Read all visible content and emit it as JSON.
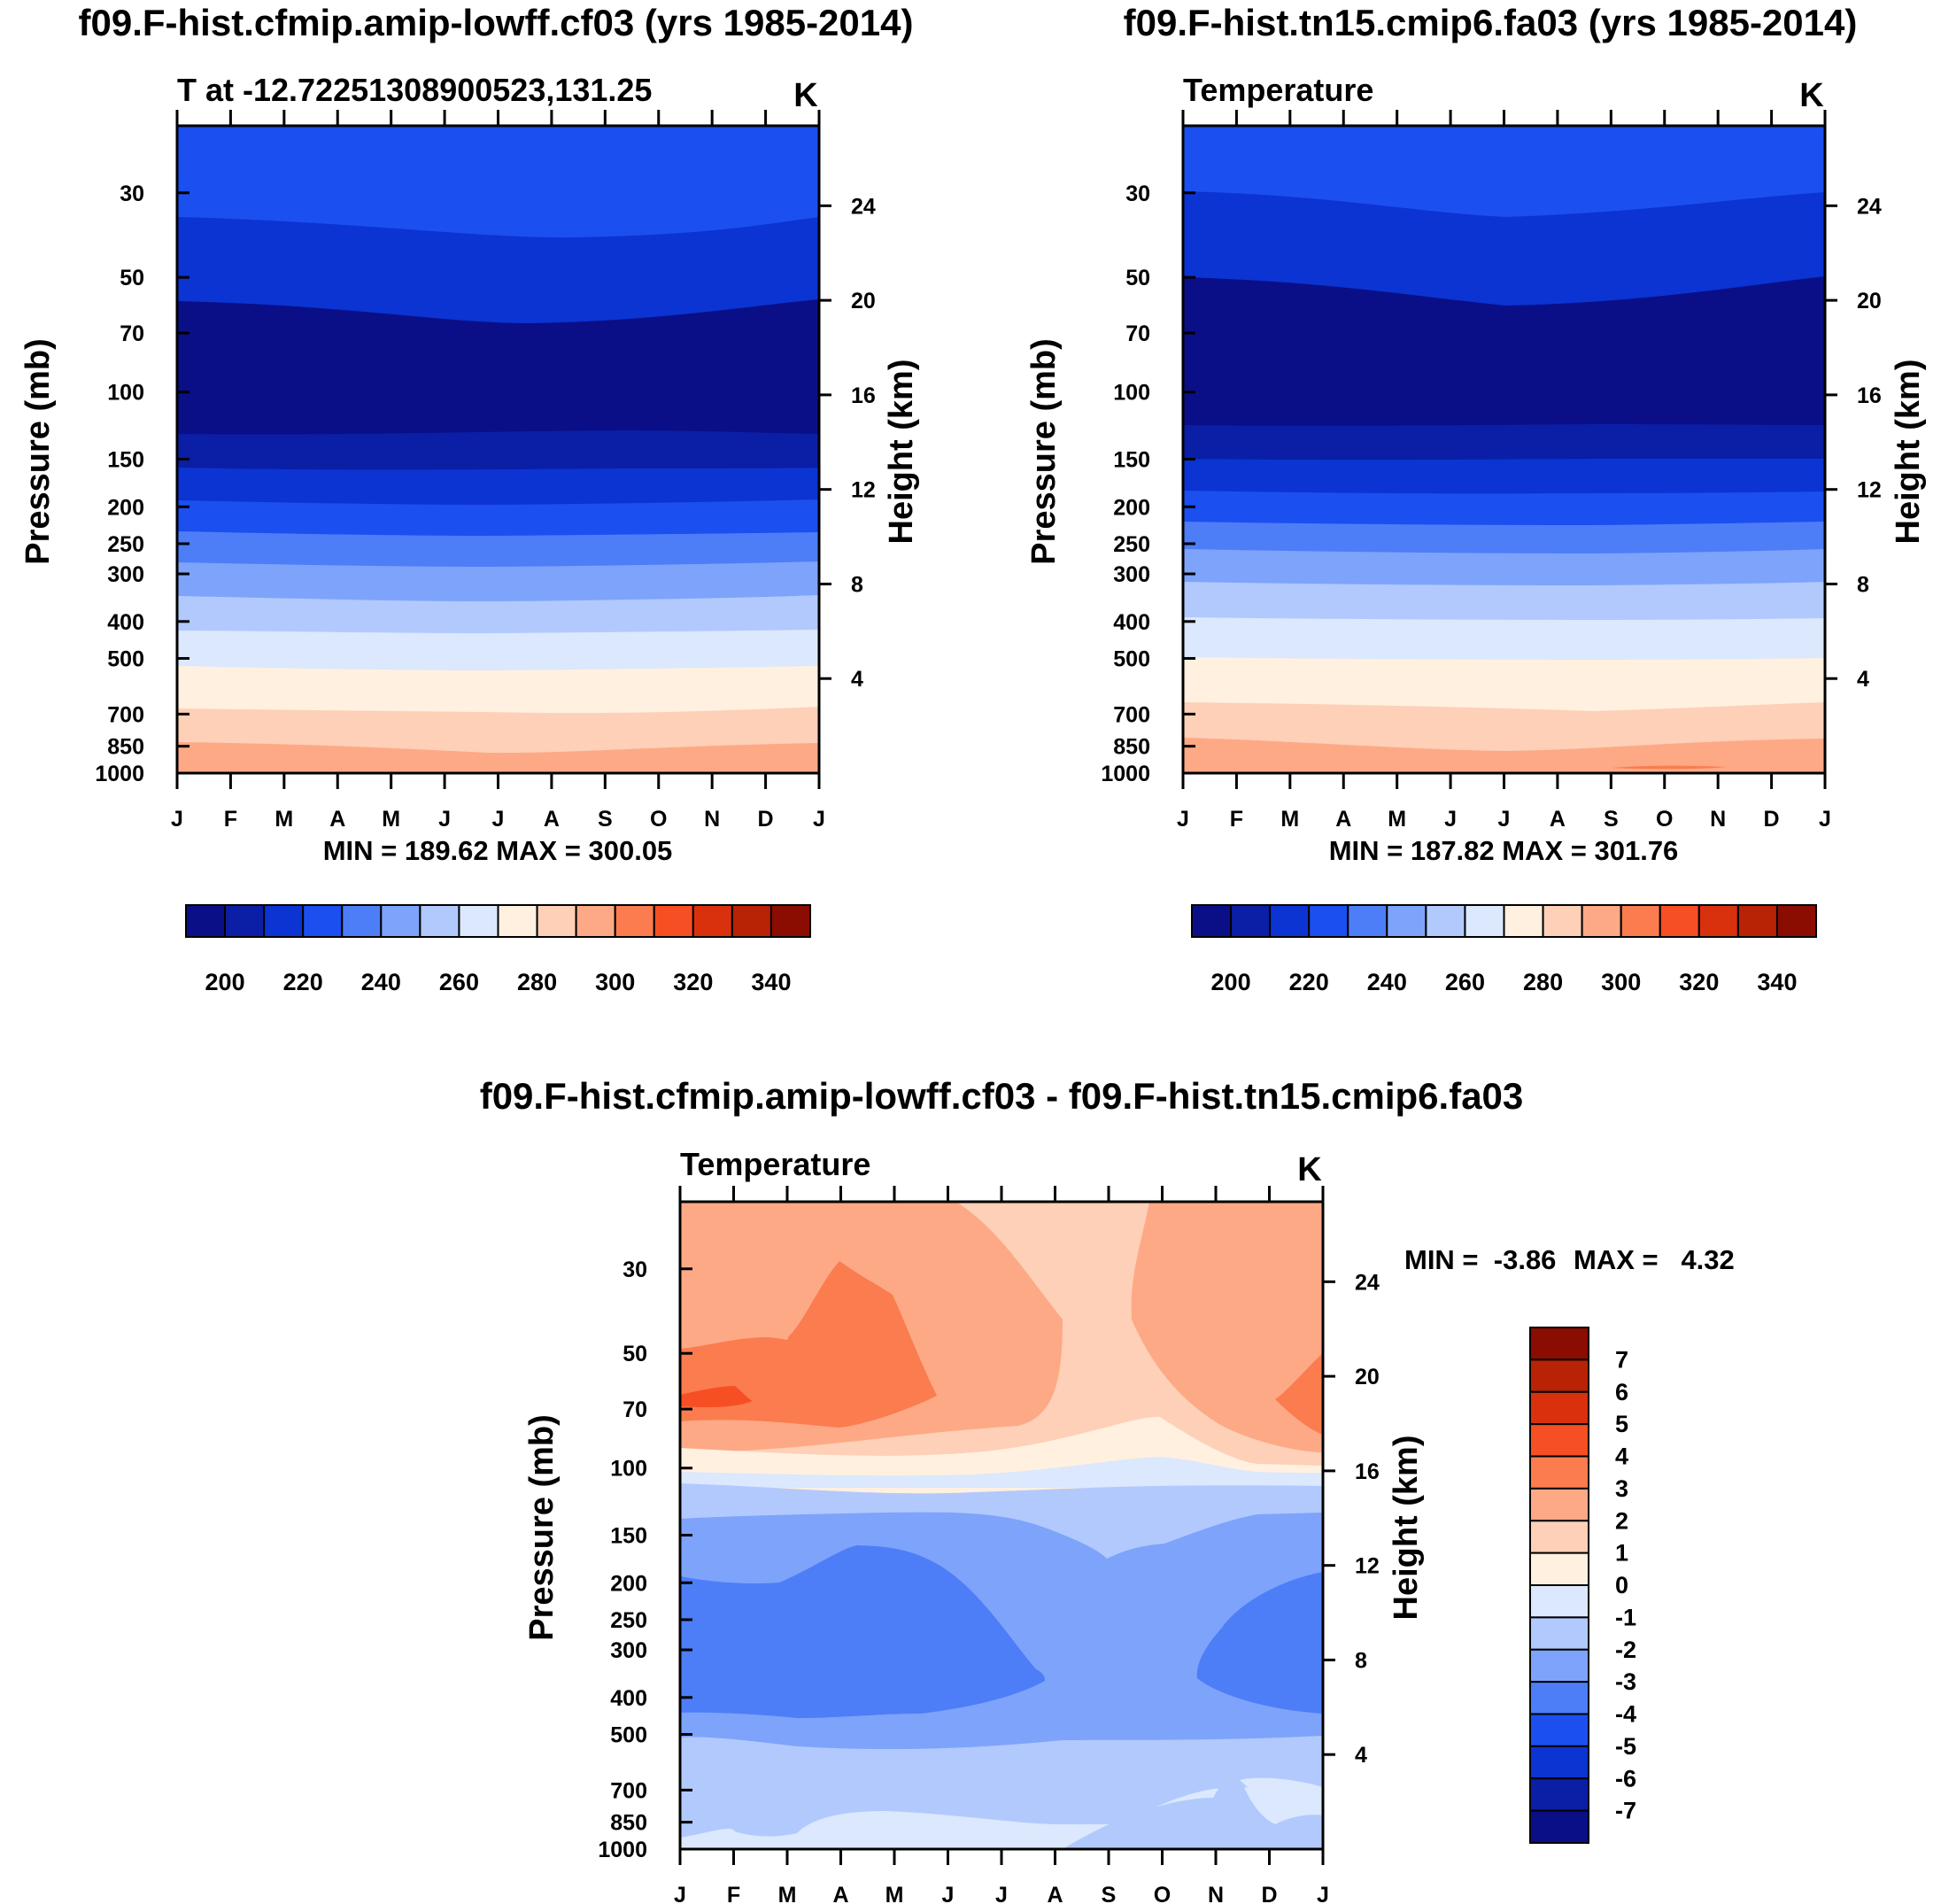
{
  "palette": {
    "temp_colors": [
      "#0a0f87",
      "#0a1fa6",
      "#0b34d2",
      "#1c4ff0",
      "#4d7ef7",
      "#7ea3fa",
      "#b2c9fd",
      "#dbe8fd",
      "#fff0e0",
      "#fdd0b7",
      "#fda986",
      "#fb7c4f",
      "#f64f23",
      "#d9310e",
      "#b82305",
      "#8b0c00"
    ],
    "diff_colors": [
      "#0a0f87",
      "#0a1fa6",
      "#0b34d2",
      "#1c4ff0",
      "#4d7ef7",
      "#7ea3fa",
      "#b2c9fd",
      "#dbe8fd",
      "#fff0e0",
      "#fdd0b7",
      "#fda986",
      "#fb7c4f",
      "#f64f23",
      "#d9310e",
      "#b82305",
      "#8b0c00"
    ]
  },
  "chart_data": [
    {
      "id": "panel_a",
      "type": "contour",
      "title": "f09.F-hist.cfmip.amip-lowff.cf03 (yrs 1985-2014)",
      "subtitle_left": "T at -12.72251308900523,131.25",
      "subtitle_right": "K",
      "ylabel": "Pressure (mb)",
      "y2label": "Height (km)",
      "months": [
        "J",
        "F",
        "M",
        "A",
        "M",
        "J",
        "J",
        "A",
        "S",
        "O",
        "N",
        "D",
        "J"
      ],
      "pressure_ticks": [
        "30",
        "50",
        "70",
        "100",
        "150",
        "200",
        "250",
        "300",
        "400",
        "500",
        "700",
        "850",
        "1000"
      ],
      "height_ticks": [
        "24",
        "20",
        "16",
        "12",
        "8",
        "4"
      ],
      "stats": "MIN = 189.62 MAX = 300.05",
      "levels": [
        200,
        210,
        220,
        230,
        240,
        250,
        260,
        270,
        280,
        290,
        300,
        310,
        320,
        330,
        340
      ],
      "colorbar_labels": [
        "200",
        "220",
        "240",
        "260",
        "280",
        "300",
        "320",
        "340"
      ],
      "bands_top_to_bottom": [
        {
          "temp_range": "220-230",
          "top_mb": 20,
          "bottom_mb": 42
        },
        {
          "temp_range": "210-220",
          "top_mb": 42,
          "bottom_mb": 66
        },
        {
          "temp_range": "<200",
          "top_mb": 66,
          "bottom_mb": 140
        },
        {
          "temp_range": "200-210",
          "top_mb": 140,
          "bottom_mb": 180
        },
        {
          "temp_range": "210-220",
          "top_mb": 180,
          "bottom_mb": 215
        },
        {
          "temp_range": "220-230",
          "top_mb": 215,
          "bottom_mb": 255
        },
        {
          "temp_range": "230-240",
          "top_mb": 255,
          "bottom_mb": 310
        },
        {
          "temp_range": "240-250",
          "top_mb": 310,
          "bottom_mb": 370
        },
        {
          "temp_range": "250-260",
          "top_mb": 370,
          "bottom_mb": 450
        },
        {
          "temp_range": "260-270",
          "top_mb": 450,
          "bottom_mb": 560
        },
        {
          "temp_range": "270-280",
          "top_mb": 560,
          "bottom_mb": 690
        },
        {
          "temp_range": "280-290",
          "top_mb": 690,
          "bottom_mb": 870
        },
        {
          "temp_range": "290-300",
          "top_mb": 870,
          "bottom_mb": 1000
        }
      ]
    },
    {
      "id": "panel_b",
      "type": "contour",
      "title": "f09.F-hist.tn15.cmip6.fa03 (yrs 1985-2014)",
      "subtitle_left": "Temperature",
      "subtitle_right": "K",
      "ylabel": "Pressure (mb)",
      "y2label": "Height (km)",
      "months": [
        "J",
        "F",
        "M",
        "A",
        "M",
        "J",
        "J",
        "A",
        "S",
        "O",
        "N",
        "D",
        "J"
      ],
      "pressure_ticks": [
        "30",
        "50",
        "70",
        "100",
        "150",
        "200",
        "250",
        "300",
        "400",
        "500",
        "700",
        "850",
        "1000"
      ],
      "height_ticks": [
        "24",
        "20",
        "16",
        "12",
        "8",
        "4"
      ],
      "stats": "MIN = 187.82 MAX = 301.76",
      "levels": [
        200,
        210,
        220,
        230,
        240,
        250,
        260,
        270,
        280,
        290,
        300,
        310,
        320,
        330,
        340
      ],
      "colorbar_labels": [
        "200",
        "220",
        "240",
        "260",
        "280",
        "300",
        "320",
        "340"
      ],
      "bands_top_to_bottom": [
        {
          "temp_range": "220-230",
          "top_mb": 20,
          "bottom_mb": 36
        },
        {
          "temp_range": "210-220",
          "top_mb": 36,
          "bottom_mb": 60
        },
        {
          "temp_range": "<200",
          "top_mb": 60,
          "bottom_mb": 130
        },
        {
          "temp_range": "200-210",
          "top_mb": 130,
          "bottom_mb": 165
        },
        {
          "temp_range": "210-220",
          "top_mb": 165,
          "bottom_mb": 205
        },
        {
          "temp_range": "220-230",
          "top_mb": 205,
          "bottom_mb": 245
        },
        {
          "temp_range": "230-240",
          "top_mb": 245,
          "bottom_mb": 295
        },
        {
          "temp_range": "240-250",
          "top_mb": 295,
          "bottom_mb": 350
        },
        {
          "temp_range": "250-260",
          "top_mb": 350,
          "bottom_mb": 425
        },
        {
          "temp_range": "260-270",
          "top_mb": 425,
          "bottom_mb": 530
        },
        {
          "temp_range": "270-280",
          "top_mb": 530,
          "bottom_mb": 680
        },
        {
          "temp_range": "280-290",
          "top_mb": 680,
          "bottom_mb": 860
        },
        {
          "temp_range": "290-300",
          "top_mb": 860,
          "bottom_mb": 1000
        }
      ]
    },
    {
      "id": "panel_c",
      "type": "contour",
      "title": "f09.F-hist.cfmip.amip-lowff.cf03 - f09.F-hist.tn15.cmip6.fa03",
      "subtitle_left": "Temperature",
      "subtitle_right": "K",
      "ylabel": "Pressure (mb)",
      "y2label": "Height (km)",
      "months": [
        "J",
        "F",
        "M",
        "A",
        "M",
        "J",
        "J",
        "A",
        "S",
        "O",
        "N",
        "D",
        "J"
      ],
      "pressure_ticks": [
        "30",
        "50",
        "70",
        "100",
        "150",
        "200",
        "250",
        "300",
        "400",
        "500",
        "700",
        "850",
        "1000"
      ],
      "height_ticks": [
        "24",
        "20",
        "16",
        "12",
        "8",
        "4"
      ],
      "stats_min": "MIN =  -3.86",
      "stats_max": "MAX =   4.32",
      "levels": [
        -7,
        -6,
        -5,
        -4,
        -3,
        -2,
        -1,
        0,
        1,
        2,
        3,
        4,
        5,
        6,
        7
      ],
      "colorbar_labels": [
        "7",
        "6",
        "5",
        "4",
        "3",
        "2",
        "1",
        "0",
        "-1",
        "-2",
        "-3",
        "-4",
        "-5",
        "-6",
        "-7"
      ],
      "regions_described": [
        {
          "diff_range": "2 to 3",
          "where": "upper stratosphere, months J-May and Sep-Dec"
        },
        {
          "diff_range": "1 to 2",
          "where": "Jun-Sep above 80 mb"
        },
        {
          "diff_range": "3 to 4",
          "where": "Feb-May around 30-90 mb"
        },
        {
          "diff_range": "4 to 5",
          "where": "Jan-Feb near 75 mb"
        },
        {
          "diff_range": "0 to 1",
          "where": "around 100-120 mb"
        },
        {
          "diff_range": "-1 to 0",
          "where": "around 125-135 mb"
        },
        {
          "diff_range": "-2 to -1",
          "where": "130-200 mb and 500-850 mb"
        },
        {
          "diff_range": "-3 to -2",
          "where": "150-500 mb"
        },
        {
          "diff_range": "-4 to -3",
          "where": "Jan-Jul and Nov-Jan between 200-450 mb"
        }
      ]
    }
  ]
}
